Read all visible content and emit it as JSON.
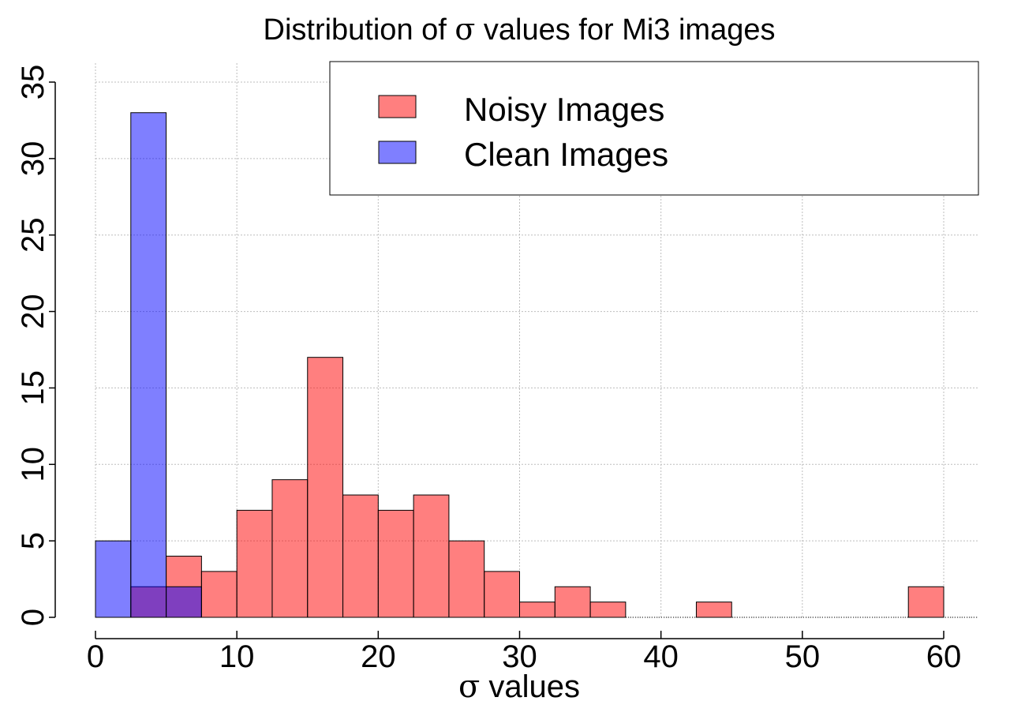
{
  "chart_data": {
    "type": "bar",
    "title_prefix": "Distribution of ",
    "sigma_symbol": "σ",
    "title_suffix": " values for Mi3 images",
    "xlabel_suffix": " values",
    "ylabel": "",
    "xlim": [
      0,
      60
    ],
    "ylim": [
      0,
      35
    ],
    "bin_width": 2.5,
    "xticks": [
      0,
      10,
      20,
      30,
      40,
      50,
      60
    ],
    "yticks": [
      0,
      5,
      10,
      15,
      20,
      25,
      30,
      35
    ],
    "grid": true,
    "legend_position": "top-right",
    "series": [
      {
        "name": "Noisy Images",
        "color": "#ff0000",
        "opacity": 0.5,
        "bins": [
          {
            "x0": 2.5,
            "x1": 5,
            "count": 2
          },
          {
            "x0": 5,
            "x1": 7.5,
            "count": 4
          },
          {
            "x0": 7.5,
            "x1": 10,
            "count": 3
          },
          {
            "x0": 10,
            "x1": 12.5,
            "count": 7
          },
          {
            "x0": 12.5,
            "x1": 15,
            "count": 9
          },
          {
            "x0": 15,
            "x1": 17.5,
            "count": 17
          },
          {
            "x0": 17.5,
            "x1": 20,
            "count": 8
          },
          {
            "x0": 20,
            "x1": 22.5,
            "count": 7
          },
          {
            "x0": 22.5,
            "x1": 25,
            "count": 8
          },
          {
            "x0": 25,
            "x1": 27.5,
            "count": 5
          },
          {
            "x0": 27.5,
            "x1": 30,
            "count": 3
          },
          {
            "x0": 30,
            "x1": 32.5,
            "count": 1
          },
          {
            "x0": 32.5,
            "x1": 35,
            "count": 2
          },
          {
            "x0": 35,
            "x1": 37.5,
            "count": 1
          },
          {
            "x0": 42.5,
            "x1": 45,
            "count": 1
          },
          {
            "x0": 57.5,
            "x1": 60,
            "count": 2
          }
        ]
      },
      {
        "name": "Clean Images",
        "color": "#0000ff",
        "opacity": 0.5,
        "bins": [
          {
            "x0": 0,
            "x1": 2.5,
            "count": 5
          },
          {
            "x0": 2.5,
            "x1": 5,
            "count": 33
          },
          {
            "x0": 5,
            "x1": 7.5,
            "count": 2
          }
        ]
      }
    ]
  }
}
